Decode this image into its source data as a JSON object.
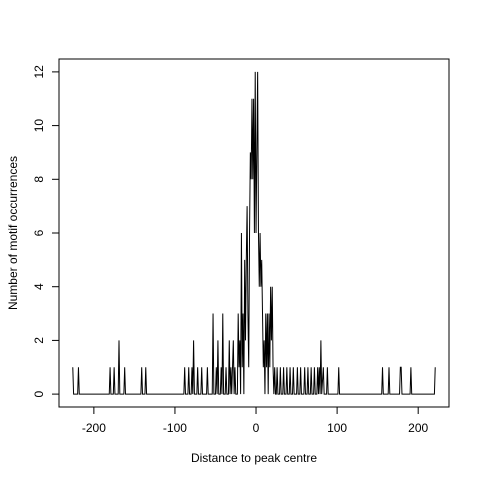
{
  "chart_data": {
    "type": "line",
    "xlabel": "Distance to peak centre",
    "ylabel": "Number of motif occurrences",
    "x": [
      -226,
      -225,
      -220,
      -219,
      -218,
      -181,
      -180,
      -179,
      -176,
      -175,
      -174,
      -170,
      -169,
      -168,
      -163,
      -162,
      -161,
      -142,
      -141,
      -140,
      -137,
      -136,
      -135,
      -89,
      -88,
      -87,
      -84,
      -83,
      -82,
      -80,
      -79,
      -78,
      -77,
      -76,
      -73,
      -72,
      -71,
      -68,
      -67,
      -66,
      -61,
      -60,
      -59,
      -54,
      -53,
      -52,
      -50,
      -49,
      -48,
      -47,
      -46,
      -44,
      -43,
      -42,
      -41,
      -40,
      -38,
      -37,
      -36,
      -34,
      -33,
      -32,
      -31,
      -30,
      -28,
      -27,
      -26,
      -25,
      -23,
      -22,
      -21,
      -20,
      -19,
      -18,
      -17,
      -16,
      -15,
      -14,
      -13,
      -12,
      -11,
      -10,
      -9,
      -8,
      -7,
      -6,
      -5,
      -4,
      -3,
      -2,
      -1,
      0,
      1,
      2,
      3,
      4,
      5,
      6,
      7,
      8,
      9,
      10,
      11,
      12,
      13,
      14,
      15,
      16,
      17,
      18,
      19,
      20,
      21,
      22,
      23,
      24,
      25,
      26,
      27,
      29,
      30,
      31,
      33,
      34,
      35,
      37,
      38,
      39,
      41,
      42,
      43,
      45,
      46,
      47,
      50,
      51,
      52,
      54,
      55,
      56,
      59,
      60,
      61,
      63,
      64,
      65,
      67,
      68,
      69,
      71,
      72,
      73,
      75,
      76,
      77,
      78,
      79,
      80,
      81,
      83,
      84,
      87,
      88,
      89,
      101,
      102,
      103,
      155,
      156,
      157,
      163,
      164,
      165,
      177,
      178,
      179,
      180,
      190,
      191,
      192,
      220,
      221
    ],
    "series": [
      {
        "name": "occurrences",
        "color": "#000000",
        "values": [
          1,
          0,
          0,
          1,
          0,
          0,
          1,
          0,
          0,
          1,
          0,
          0,
          2,
          0,
          0,
          1,
          0,
          0,
          1,
          0,
          0,
          1,
          0,
          0,
          1,
          0,
          0,
          1,
          0,
          0,
          1,
          0,
          2,
          0,
          0,
          1,
          0,
          0,
          1,
          0,
          0,
          1,
          0,
          0,
          3,
          0,
          0,
          1,
          0,
          2,
          0,
          0,
          1,
          0,
          3,
          0,
          0,
          1,
          0,
          0,
          2,
          0,
          1,
          0,
          2,
          0,
          1,
          0,
          0,
          3,
          1,
          2,
          0,
          6,
          1,
          3,
          0,
          5,
          2,
          5,
          7,
          3,
          1,
          6,
          9,
          8,
          11,
          8,
          11,
          6,
          12,
          6,
          9,
          12,
          6,
          4,
          6,
          4,
          5,
          3,
          1,
          2,
          0,
          3,
          1,
          3,
          0,
          3,
          1,
          4,
          2,
          4,
          1,
          0,
          1,
          0,
          0,
          1,
          0,
          0,
          1,
          0,
          0,
          1,
          0,
          0,
          1,
          0,
          0,
          1,
          0,
          0,
          1,
          0,
          0,
          1,
          0,
          0,
          1,
          0,
          0,
          1,
          0,
          0,
          1,
          0,
          0,
          1,
          0,
          0,
          1,
          0,
          0,
          1,
          0,
          1,
          0,
          2,
          0,
          1,
          0,
          0,
          1,
          0,
          0,
          1,
          0,
          0,
          1,
          0,
          0,
          1,
          0,
          0,
          1,
          1,
          0,
          0,
          1,
          0,
          0,
          1
        ]
      }
    ],
    "xlim": [
      -243,
      238
    ],
    "ylim": [
      -0.48,
      12.48
    ],
    "xticks": [
      -200,
      -100,
      0,
      100,
      200
    ],
    "yticks": [
      0,
      2,
      4,
      6,
      8,
      10,
      12
    ]
  }
}
